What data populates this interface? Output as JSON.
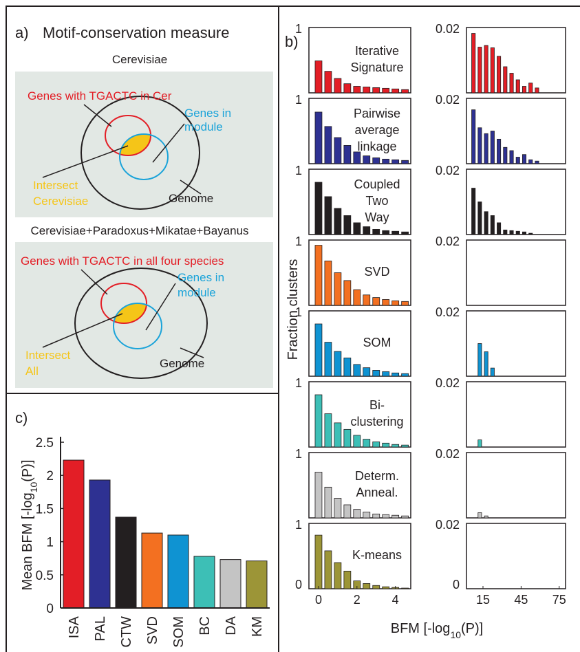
{
  "diagram": {
    "label": "a)",
    "title": "Motif-conservation measure",
    "sections": [
      {
        "header": "Cerevisiae",
        "red": "Genes with TGACTC in Cer",
        "blue": [
          "Genes in",
          "module"
        ],
        "yellow": [
          "Intersect",
          "Cerevisiae"
        ],
        "genome": "Genome"
      },
      {
        "header": "Cerevisiae+Paradoxus+Mikatae+Bayanus",
        "red": "Genes with TGACTC in all four species",
        "blue": [
          "Genes in",
          "module"
        ],
        "yellow": [
          "Intersect",
          "All"
        ],
        "genome": "Genome"
      }
    ]
  },
  "chart_data": [
    {
      "type": "bar",
      "label": "c)",
      "ylabel": [
        "Mean BFM [-log",
        "10",
        "(P)]"
      ],
      "categories": [
        "ISA",
        "PAL",
        "CTW",
        "SVD",
        "SOM",
        "BC",
        "DA",
        "KM"
      ],
      "values": [
        2.23,
        1.93,
        1.37,
        1.13,
        1.1,
        0.78,
        0.73,
        0.71
      ],
      "colors": [
        "#e31e26",
        "#2e3192",
        "#231f20",
        "#f37021",
        "#0f93d2",
        "#3dbfb6",
        "#c4c4c4",
        "#9c9537"
      ],
      "ylim": [
        0,
        2.5
      ],
      "yticks": [
        0,
        0.5,
        1,
        1.5,
        2,
        2.5
      ]
    },
    {
      "type": "histogram-grid",
      "label": "b)",
      "xlabel": [
        "BFM [-log",
        "10",
        "(P)]"
      ],
      "ylabel": "Fraction clusters",
      "left": {
        "bins": [
          -0.25,
          0.25,
          0.75,
          1.25,
          1.75,
          2.25,
          2.75,
          3.25,
          3.75,
          4.25,
          4.75
        ],
        "xlim": [
          -0.5,
          4.8
        ],
        "xticks": [
          0,
          2,
          4
        ],
        "ylim": [
          0,
          1
        ],
        "yticks": [
          0,
          1
        ]
      },
      "right": {
        "bins": [
          5,
          10,
          15,
          20,
          25,
          30,
          35,
          40,
          45,
          50,
          55,
          60,
          65,
          70
        ],
        "xlim": [
          2,
          80
        ],
        "xticks": [
          15,
          45,
          75
        ],
        "ylim": [
          0,
          0.02
        ],
        "yticks": [
          0,
          0.02
        ]
      },
      "rows": [
        {
          "title": [
            "Iterative",
            "Signature"
          ],
          "color": "#e31e26",
          "left": [
            0.49,
            0.33,
            0.22,
            0.14,
            0.1,
            0.09,
            0.08,
            0.07,
            0.06,
            0.05
          ],
          "right": [
            0.0182,
            0.014,
            0.0145,
            0.0138,
            0.0112,
            0.008,
            0.006,
            0.004,
            0.002,
            0.003,
            0.0015,
            0,
            0
          ]
        },
        {
          "title": [
            "Pairwise",
            "average",
            "linkage"
          ],
          "color": "#2e3192",
          "left": [
            0.79,
            0.57,
            0.4,
            0.28,
            0.18,
            0.12,
            0.09,
            0.07,
            0.06,
            0.05
          ],
          "right": [
            0.0165,
            0.011,
            0.0092,
            0.01,
            0.0075,
            0.005,
            0.004,
            0.002,
            0.0028,
            0.0012,
            0.0008,
            0,
            0
          ]
        },
        {
          "title": [
            "Coupled",
            "Two",
            "Way"
          ],
          "color": "#231f20",
          "left": [
            0.8,
            0.58,
            0.4,
            0.29,
            0.18,
            0.12,
            0.08,
            0.06,
            0.05,
            0.04
          ],
          "right": [
            0.0142,
            0.01,
            0.007,
            0.0058,
            0.0036,
            0.0014,
            0.0012,
            0.001,
            0.0008,
            0.0004,
            0,
            0,
            0
          ]
        },
        {
          "title": [
            "SVD"
          ],
          "color": "#f37021",
          "left": [
            0.92,
            0.68,
            0.5,
            0.38,
            0.24,
            0.16,
            0.12,
            0.09,
            0.07,
            0.06
          ],
          "right": [
            0,
            0,
            0,
            0,
            0,
            0,
            0,
            0,
            0,
            0,
            0,
            0,
            0
          ]
        },
        {
          "title": [
            "SOM"
          ],
          "color": "#0f93d2",
          "left": [
            0.8,
            0.52,
            0.38,
            0.28,
            0.18,
            0.13,
            0.09,
            0.07,
            0.05,
            0.04
          ],
          "right": [
            0,
            0.01,
            0.0075,
            0.0025,
            0,
            0,
            0,
            0,
            0,
            0,
            0,
            0,
            0
          ]
        },
        {
          "title": [
            "Bi-",
            "clustering"
          ],
          "color": "#3dbfb6",
          "left": [
            0.8,
            0.51,
            0.37,
            0.27,
            0.18,
            0.12,
            0.08,
            0.06,
            0.04,
            0.03
          ],
          "right": [
            0,
            0.0022,
            0,
            0,
            0,
            0,
            0,
            0,
            0,
            0,
            0,
            0,
            0
          ]
        },
        {
          "title": [
            "Determ.",
            "Anneal."
          ],
          "color": "#c4c4c4",
          "left": [
            0.7,
            0.47,
            0.3,
            0.2,
            0.13,
            0.09,
            0.06,
            0.05,
            0.04,
            0.03
          ],
          "right": [
            0,
            0.0016,
            0.0006,
            0,
            0,
            0,
            0,
            0,
            0,
            0,
            0,
            0,
            0
          ]
        },
        {
          "title": [
            "K-means"
          ],
          "color": "#9c9537",
          "left": [
            0.82,
            0.58,
            0.4,
            0.27,
            0.12,
            0.08,
            0.05,
            0.03,
            0.02,
            0.01
          ],
          "right": [
            0,
            0,
            0,
            0,
            0,
            0,
            0,
            0,
            0,
            0,
            0,
            0,
            0
          ]
        }
      ]
    }
  ]
}
